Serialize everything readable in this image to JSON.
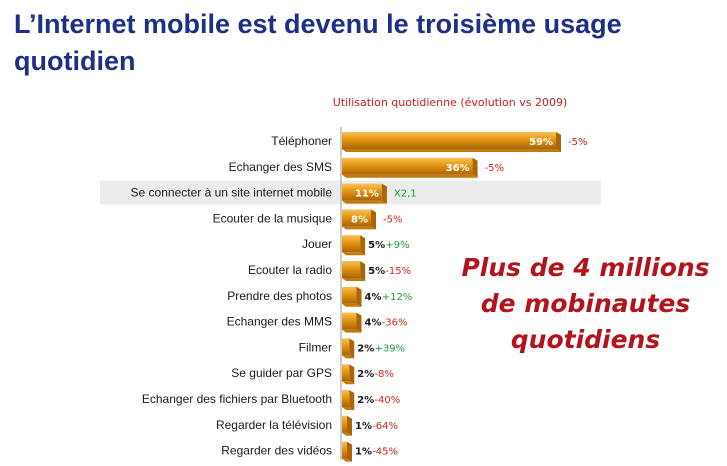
{
  "page": {
    "title": "L’Internet mobile est devenu le troisième usage quotidien",
    "subtitle": "Utilisation quotidienne (évolution vs 2009)",
    "callout": [
      "Plus de 4 millions",
      "de mobinautes",
      "quotidiens"
    ]
  },
  "colors": {
    "title": "#1f2f86",
    "bar": "#e3960f",
    "bar_dark": "#a8650a",
    "negative": "#d0261f",
    "positive": "#1f9a3a",
    "highlight_row": "#ececec",
    "callout": "#b3141c",
    "subtitle": "#c0202a"
  },
  "chart_data": {
    "type": "bar",
    "orientation": "horizontal",
    "title": "Utilisation quotidienne (évolution vs 2009)",
    "unit": "%",
    "xlim": [
      0,
      59
    ],
    "highlighted_category": "Se connecter à un site internet mobile",
    "categories": [
      "Téléphoner",
      "Echanger des SMS",
      "Se connecter à un site internet mobile",
      "Ecouter de la musique",
      "Jouer",
      "Ecouter la radio",
      "Prendre des photos",
      "Echanger des MMS",
      "Filmer",
      "Se guider par GPS",
      "Echanger des fichiers par Bluetooth",
      "Regarder la télévision",
      "Regarder des vidéos"
    ],
    "values": [
      59,
      36,
      11,
      8,
      5,
      5,
      4,
      4,
      2,
      2,
      2,
      1,
      1
    ],
    "value_labels": [
      "59%",
      "36%",
      "11%",
      "8%",
      "5%",
      "5%",
      "4%",
      "4%",
      "2%",
      "2%",
      "2%",
      "1%",
      "1%"
    ],
    "evolution_labels": [
      "-5%",
      "-5%",
      "X2,1",
      "-5%",
      "+9%",
      "-15%",
      "+12%",
      "-36%",
      "+39%",
      "-8%",
      "-40%",
      "-64%",
      "-45%"
    ],
    "evolution_sign": [
      "neg",
      "neg",
      "pos",
      "neg",
      "pos",
      "neg",
      "pos",
      "neg",
      "pos",
      "neg",
      "neg",
      "neg",
      "neg"
    ]
  }
}
